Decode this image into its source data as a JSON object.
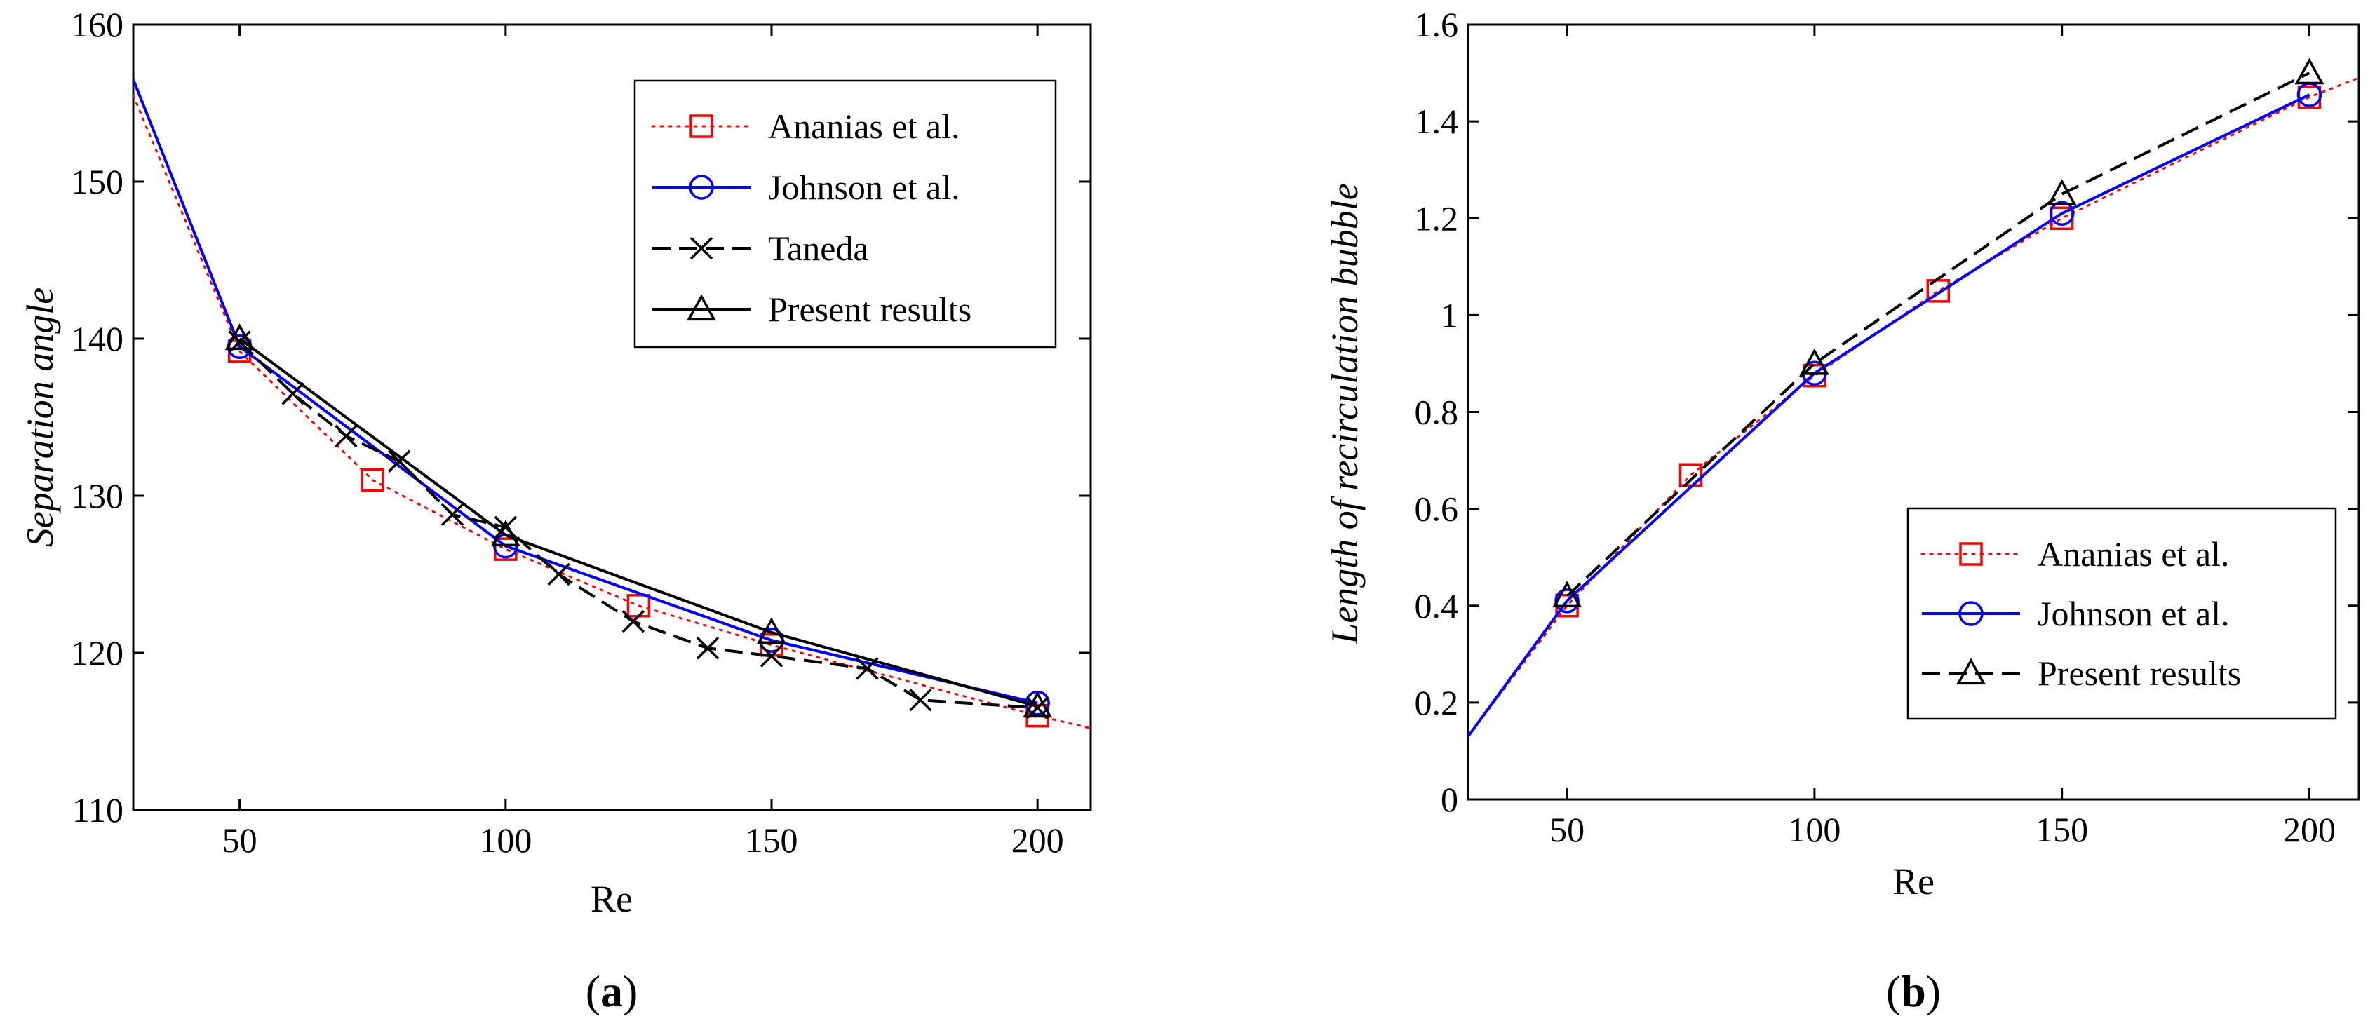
{
  "colors": {
    "ananias": "#ff0000",
    "johnson": "#0000ff",
    "taneda": "#000000",
    "present": "#000000",
    "axis": "#000000"
  },
  "chart_data": [
    {
      "id": "a",
      "type": "line",
      "caption": {
        "open": "(",
        "letter": "a",
        "close": ")"
      },
      "xlabel": "Re",
      "ylabel": "Separation angle",
      "xlim": [
        30,
        210
      ],
      "ylim": [
        110,
        160
      ],
      "xticks": [
        50,
        100,
        150,
        200
      ],
      "yticks": [
        110,
        120,
        130,
        140,
        150,
        160
      ],
      "legend_position": "top-right",
      "series": [
        {
          "key": "ananias",
          "name": "Ananias et al.",
          "style": "dotted",
          "color": "#ff0000",
          "marker": "square",
          "x": [
            50,
            75,
            100,
            125,
            150,
            200
          ],
          "y": [
            139.2,
            131,
            126.6,
            123,
            120.5,
            116
          ],
          "line_x": [
            30,
            50,
            75,
            100,
            125,
            150,
            200,
            210
          ],
          "line_y": [
            155.5,
            139.2,
            131,
            126.6,
            123,
            120.5,
            116,
            115.2
          ]
        },
        {
          "key": "johnson",
          "name": "Johnson et al.",
          "style": "solid",
          "color": "#0000ff",
          "marker": "circle",
          "x": [
            50,
            100,
            150,
            200
          ],
          "y": [
            139.5,
            126.8,
            120.8,
            116.8
          ],
          "line_x": [
            30,
            50,
            100,
            150,
            200
          ],
          "line_y": [
            156.5,
            139.5,
            126.8,
            120.8,
            116.8
          ]
        },
        {
          "key": "taneda",
          "name": "Taneda",
          "style": "dashed",
          "color": "#000000",
          "marker": "x",
          "x": [
            50,
            60,
            70,
            80,
            90,
            100,
            110,
            124,
            138,
            150,
            168,
            178,
            200
          ],
          "y": [
            139.8,
            136.5,
            133.8,
            132.2,
            128.8,
            128,
            125,
            122,
            120.3,
            119.8,
            119,
            117,
            116.5
          ],
          "line_x": [
            50,
            60,
            70,
            80,
            90,
            100,
            110,
            124,
            138,
            150,
            168,
            178,
            200
          ],
          "line_y": [
            139.8,
            136.5,
            133.8,
            132.2,
            128.8,
            128,
            125,
            122,
            120.3,
            119.8,
            119,
            117,
            116.5
          ]
        },
        {
          "key": "present",
          "name": "Present results",
          "style": "solid",
          "color": "#000000",
          "marker": "triangle",
          "x": [
            50,
            100,
            150,
            200
          ],
          "y": [
            140,
            127.5,
            121.3,
            116.6
          ],
          "line_x": [
            50,
            100,
            150,
            200
          ],
          "line_y": [
            140,
            127.5,
            121.3,
            116.6
          ]
        }
      ]
    },
    {
      "id": "b",
      "type": "line",
      "caption": {
        "open": "(",
        "letter": "b",
        "close": ")"
      },
      "xlabel": "Re",
      "ylabel": "Length of recirculation bubble",
      "xlim": [
        30,
        210
      ],
      "ylim": [
        0,
        1.6
      ],
      "xticks": [
        50,
        100,
        150,
        200
      ],
      "yticks": [
        0,
        0.2,
        0.4,
        0.6,
        0.8,
        1,
        1.2,
        1.4,
        1.6
      ],
      "legend_position": "bottom-right",
      "series": [
        {
          "key": "ananias",
          "name": "Ananias et al.",
          "style": "dotted",
          "color": "#ff0000",
          "marker": "square",
          "x": [
            50,
            75,
            100,
            125,
            150,
            200
          ],
          "y": [
            0.4,
            0.67,
            0.875,
            1.05,
            1.2,
            1.45
          ],
          "line_x": [
            30,
            50,
            75,
            100,
            125,
            150,
            200,
            210
          ],
          "line_y": [
            0.13,
            0.4,
            0.67,
            0.875,
            1.05,
            1.2,
            1.45,
            1.49
          ]
        },
        {
          "key": "johnson",
          "name": "Johnson et al.",
          "style": "solid",
          "color": "#0000ff",
          "marker": "circle",
          "x": [
            50,
            100,
            150,
            200
          ],
          "y": [
            0.41,
            0.88,
            1.21,
            1.455
          ],
          "line_x": [
            30,
            50,
            100,
            150,
            200
          ],
          "line_y": [
            0.13,
            0.41,
            0.88,
            1.21,
            1.455
          ]
        },
        {
          "key": "present",
          "name": "Present results",
          "style": "dashed",
          "color": "#000000",
          "marker": "triangle",
          "x": [
            50,
            100,
            150,
            200
          ],
          "y": [
            0.42,
            0.9,
            1.25,
            1.5
          ],
          "line_x": [
            50,
            100,
            150,
            200
          ],
          "line_y": [
            0.42,
            0.9,
            1.25,
            1.5
          ]
        }
      ]
    }
  ]
}
